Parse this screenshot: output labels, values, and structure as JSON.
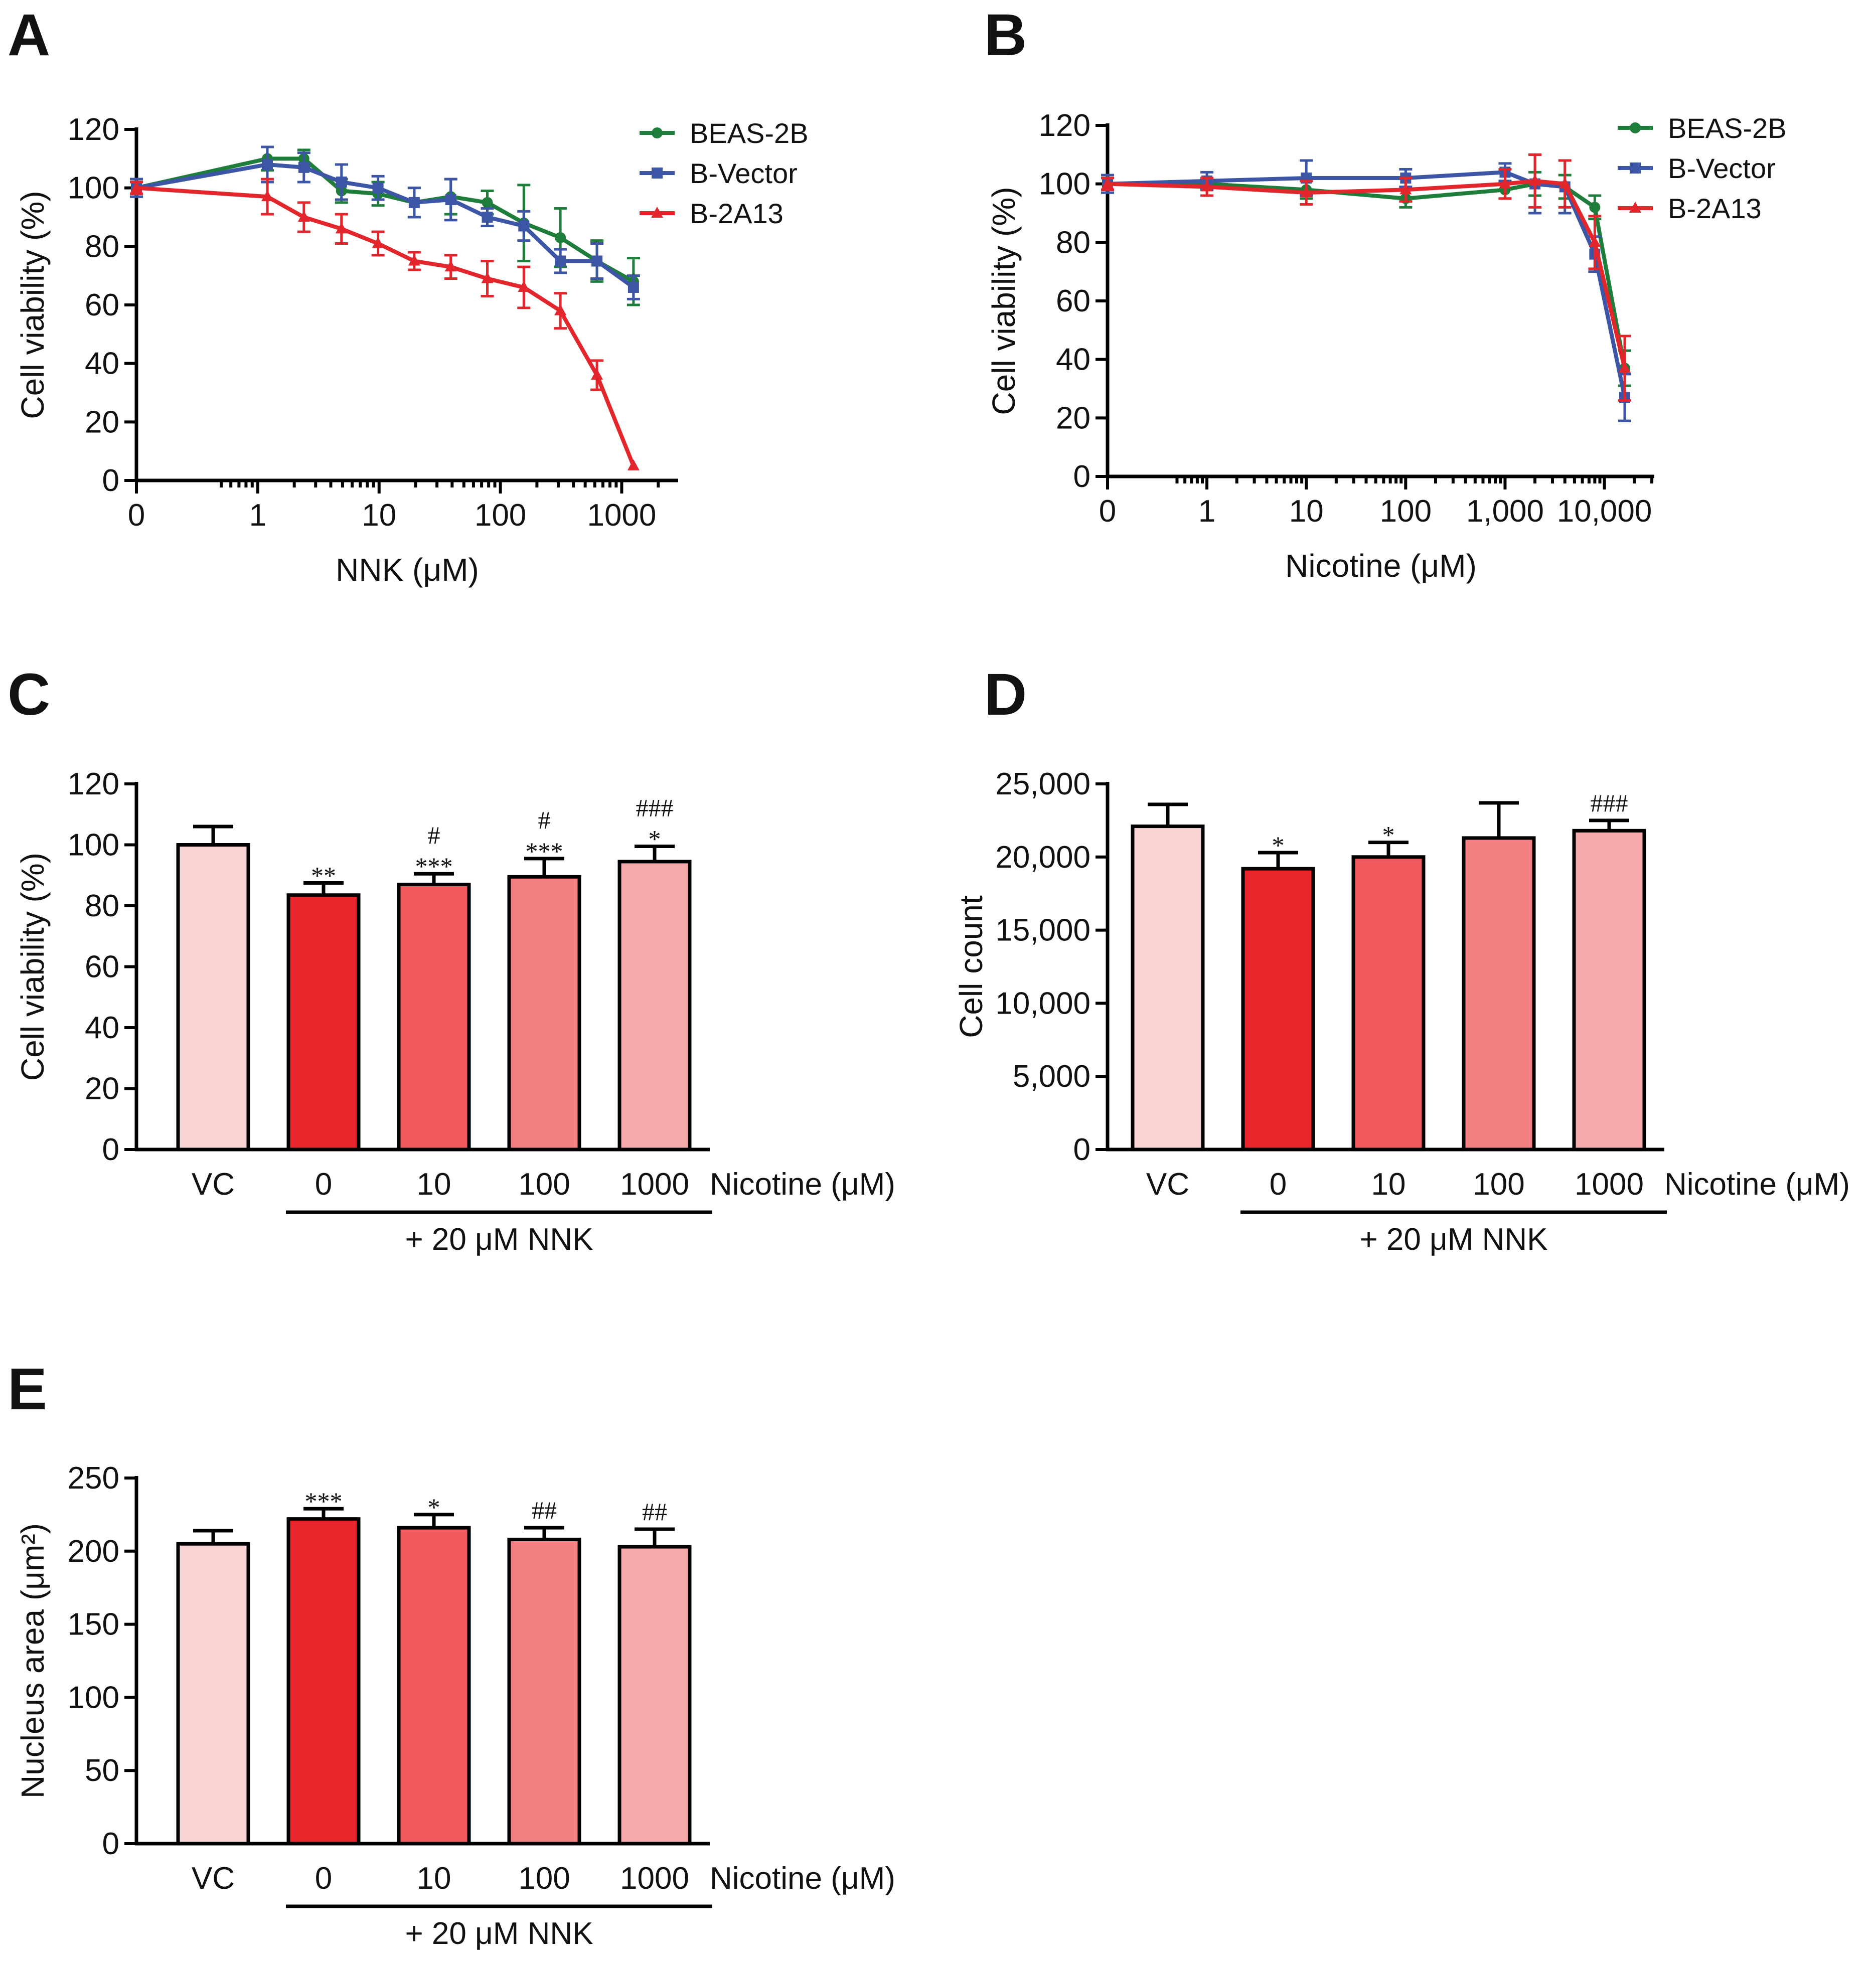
{
  "panels": {
    "a": {
      "label": "A"
    },
    "b": {
      "label": "B"
    },
    "c": {
      "label": "C"
    },
    "d": {
      "label": "D"
    },
    "e": {
      "label": "E"
    }
  },
  "chart_data": [
    {
      "id": "A",
      "type": "line",
      "xscale": "log",
      "xlabel": "NNK (μM)",
      "ylabel": "Cell viability (%)",
      "ylim": [
        0,
        120
      ],
      "yticks": [
        0,
        20,
        40,
        60,
        80,
        100,
        120
      ],
      "xticks": [
        {
          "value": 0,
          "label": "0"
        },
        {
          "value": 1,
          "label": "1"
        },
        {
          "value": 10,
          "label": "10"
        },
        {
          "value": 100,
          "label": "100"
        },
        {
          "value": 1000,
          "label": "1000"
        }
      ],
      "legend_position": "top-right",
      "series": [
        {
          "name": "BEAS-2B",
          "color": "#1e7d3a",
          "marker": "circle",
          "x": [
            0,
            1.2,
            2.4,
            4.9,
            9.8,
            19.5,
            39,
            78,
            156,
            312,
            625,
            1250
          ],
          "values": [
            100,
            110,
            110,
            99,
            98,
            95,
            97,
            95,
            88,
            83,
            75,
            68
          ],
          "errors": [
            3,
            4,
            3,
            4,
            4,
            5,
            6,
            4,
            13,
            10,
            7,
            8
          ]
        },
        {
          "name": "B-Vector",
          "color": "#3c55a5",
          "marker": "square",
          "x": [
            0,
            1.2,
            2.4,
            4.9,
            9.8,
            19.5,
            39,
            78,
            156,
            312,
            625,
            1250
          ],
          "values": [
            100,
            108,
            107,
            102,
            100,
            95,
            96,
            90,
            87,
            75,
            75,
            66
          ],
          "errors": [
            3,
            6,
            5,
            6,
            4,
            5,
            7,
            3,
            5,
            4,
            6,
            4
          ]
        },
        {
          "name": "B-2A13",
          "color": "#e2262b",
          "marker": "triangle",
          "x": [
            0,
            1.2,
            2.4,
            4.9,
            9.8,
            19.5,
            39,
            78,
            156,
            312,
            625,
            1250
          ],
          "values": [
            100,
            97,
            90,
            86,
            81,
            75,
            73,
            69,
            66,
            58,
            36,
            5
          ],
          "errors": [
            2,
            6,
            5,
            5,
            4,
            3,
            4,
            6,
            7,
            6,
            5,
            0
          ]
        }
      ]
    },
    {
      "id": "B",
      "type": "line",
      "xscale": "log",
      "xlabel": "Nicotine (μM)",
      "ylabel": "Cell viability (%)",
      "ylim": [
        0,
        120
      ],
      "yticks": [
        0,
        20,
        40,
        60,
        80,
        100,
        120
      ],
      "xticks": [
        {
          "value": 0,
          "label": "0"
        },
        {
          "value": 1,
          "label": "1"
        },
        {
          "value": 10,
          "label": "10"
        },
        {
          "value": 100,
          "label": "100"
        },
        {
          "value": 1000,
          "label": "1,000"
        },
        {
          "value": 10000,
          "label": "10,000"
        }
      ],
      "legend_position": "top-right",
      "series": [
        {
          "name": "BEAS-2B",
          "color": "#1e7d3a",
          "marker": "circle",
          "x": [
            0,
            1,
            10,
            100,
            1000,
            2000,
            4000,
            8000,
            16000
          ],
          "values": [
            100,
            100,
            98,
            95,
            98,
            100,
            99,
            92,
            37
          ],
          "errors": [
            2,
            2,
            3,
            3,
            3,
            4,
            4,
            4,
            6
          ]
        },
        {
          "name": "B-Vector",
          "color": "#3c55a5",
          "marker": "square",
          "x": [
            0,
            1,
            10,
            100,
            1000,
            2000,
            4000,
            8000,
            16000
          ],
          "values": [
            100,
            101,
            102,
            102,
            104,
            100,
            99,
            76,
            27
          ],
          "errors": [
            3,
            3,
            6,
            3,
            3,
            10,
            9,
            6,
            8
          ]
        },
        {
          "name": "B-2A13",
          "color": "#e2262b",
          "marker": "triangle",
          "x": [
            0,
            1,
            10,
            100,
            1000,
            2000,
            4000,
            8000,
            16000
          ],
          "values": [
            100,
            99,
            97,
            98,
            100,
            101,
            100,
            80,
            37
          ],
          "errors": [
            2,
            3,
            4,
            4,
            5,
            9,
            8,
            9,
            11
          ]
        }
      ]
    },
    {
      "id": "C",
      "type": "bar",
      "ylabel": "Cell viability (%)",
      "ylim": [
        0,
        120
      ],
      "yticks": [
        0,
        20,
        40,
        60,
        80,
        100,
        120
      ],
      "categories": [
        "VC",
        "0",
        "10",
        "100",
        "1000"
      ],
      "values": [
        100,
        83.5,
        87,
        89.5,
        94.5
      ],
      "errors": [
        6,
        4,
        3.5,
        6,
        5
      ],
      "colors": [
        "#f9d3d4",
        "#e8262b",
        "#f05a5f",
        "#f37f82",
        "#f6a9ab"
      ],
      "annotations": [
        [],
        [
          "**"
        ],
        [
          "***",
          "#"
        ],
        [
          "***",
          "#"
        ],
        [
          "*",
          "###"
        ]
      ],
      "treatment_label": "Nicotine (μM)",
      "group_label": "+ 20 μM NNK"
    },
    {
      "id": "D",
      "type": "bar",
      "ylabel": "Cell count",
      "ylim": [
        0,
        25000
      ],
      "yticks": [
        0,
        5000,
        10000,
        15000,
        20000,
        25000
      ],
      "ytick_labels": [
        "0",
        "5,000",
        "10,000",
        "15,000",
        "20,000",
        "25,000"
      ],
      "categories": [
        "VC",
        "0",
        "10",
        "100",
        "1000"
      ],
      "values": [
        22100,
        19200,
        20000,
        21300,
        21800
      ],
      "errors": [
        1500,
        1100,
        1000,
        2400,
        700
      ],
      "colors": [
        "#f9d3d4",
        "#e8262b",
        "#f05a5f",
        "#f37f82",
        "#f6a9ab"
      ],
      "annotations": [
        [],
        [
          "*"
        ],
        [
          "*"
        ],
        [],
        [
          "###"
        ]
      ],
      "treatment_label": "Nicotine (μM)",
      "group_label": "+ 20 μM NNK"
    },
    {
      "id": "E",
      "type": "bar",
      "ylabel": "Nucleus area (μm²)",
      "ylim": [
        0,
        250
      ],
      "yticks": [
        0,
        50,
        100,
        150,
        200,
        250
      ],
      "categories": [
        "VC",
        "0",
        "10",
        "100",
        "1000"
      ],
      "values": [
        205,
        222,
        216,
        208,
        203
      ],
      "errors": [
        9,
        7,
        9,
        8,
        12
      ],
      "colors": [
        "#f9d3d4",
        "#e8262b",
        "#f05a5f",
        "#f37f82",
        "#f6a9ab"
      ],
      "annotations": [
        [],
        [
          "***"
        ],
        [
          "*"
        ],
        [
          "##"
        ],
        [
          "##"
        ]
      ],
      "treatment_label": "Nicotine (μM)",
      "group_label": "+ 20 μM NNK"
    }
  ]
}
